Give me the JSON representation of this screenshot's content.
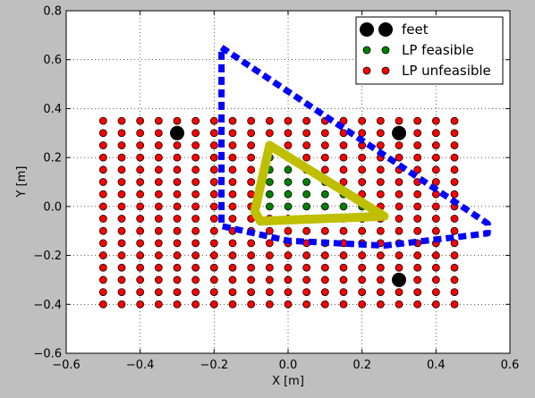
{
  "colors": {
    "figure_bg": "#bfbfbf",
    "axes_bg": "#ffffff",
    "feasible": "#008000",
    "unfeasible": "#ff0000",
    "feet": "#000000",
    "support_polygon": "#0000ff",
    "feasible_region": "#bfbf00"
  },
  "chart_data": {
    "type": "scatter",
    "xlabel": "X [m]",
    "ylabel": "Y [m]",
    "xlim": [
      -0.6,
      0.6
    ],
    "ylim": [
      -0.6,
      0.8
    ],
    "xticks": [
      -0.6,
      -0.4,
      -0.2,
      0.0,
      0.2,
      0.4,
      0.6
    ],
    "xtick_labels": [
      "−0.6",
      "−0.4",
      "−0.2",
      "0.0",
      "0.2",
      "0.4",
      "0.6"
    ],
    "yticks": [
      -0.6,
      -0.4,
      -0.2,
      0.0,
      0.2,
      0.4,
      0.6,
      0.8
    ],
    "ytick_labels": [
      "−0.6",
      "−0.4",
      "−0.2",
      "0.0",
      "0.2",
      "0.4",
      "0.6",
      "0.8"
    ],
    "grid": true,
    "legend_position": "top-right",
    "legend": [
      {
        "label": "feet",
        "marker": "circle",
        "color": "#000000"
      },
      {
        "label": "LP feasible",
        "marker": "circle",
        "color": "#008000"
      },
      {
        "label": "LP unfeasible",
        "marker": "circle",
        "color": "#ff0000"
      }
    ],
    "grid_points": {
      "x_start": -0.5,
      "x_end": 0.45,
      "x_step": 0.05,
      "y_start": -0.4,
      "y_end": 0.35,
      "y_step": 0.05
    },
    "feasible_region": {
      "description": "green points lie inside the yellow triangle (approx.)",
      "vertices": [
        [
          -0.05,
          0.25
        ],
        [
          0.26,
          -0.04
        ],
        [
          -0.075,
          -0.05
        ],
        [
          -0.09,
          -0.02
        ],
        [
          -0.065,
          0.24
        ]
      ]
    },
    "feet": [
      {
        "x": -0.3,
        "y": 0.3
      },
      {
        "x": 0.3,
        "y": 0.3
      },
      {
        "x": 0.3,
        "y": -0.3
      }
    ],
    "support_polygon": [
      [
        -0.18,
        0.65
      ],
      [
        0.54,
        -0.07
      ],
      [
        0.54,
        -0.11
      ],
      [
        0.26,
        -0.16
      ],
      [
        0.0,
        -0.14
      ],
      [
        -0.18,
        -0.08
      ],
      [
        -0.18,
        0.65
      ]
    ],
    "yellow_triangle": [
      [
        -0.05,
        0.25
      ],
      [
        0.26,
        -0.04
      ],
      [
        -0.075,
        -0.06
      ],
      [
        -0.09,
        -0.02
      ],
      [
        -0.05,
        0.25
      ]
    ]
  }
}
